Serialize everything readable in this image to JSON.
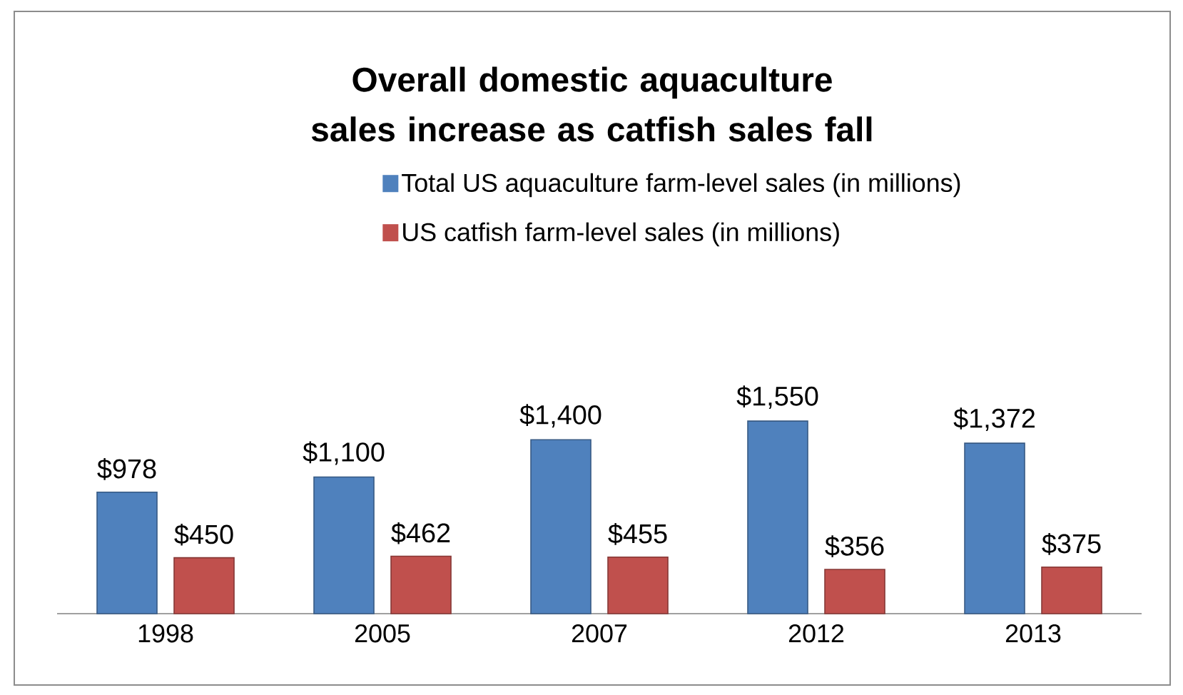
{
  "chart_data": {
    "type": "bar",
    "title": "Overall domestic aquaculture sales increase as catfish sales fall",
    "categories": [
      "1998",
      "2005",
      "2007",
      "2012",
      "2013"
    ],
    "series": [
      {
        "name": "Total US aquaculture farm-level sales (in millions)",
        "color": "#4f81bd",
        "values": [
          978,
          1100,
          1400,
          1550,
          1372
        ],
        "value_labels": [
          "$978",
          "$1,100",
          "$1,400",
          "$1,550",
          "$1,372"
        ]
      },
      {
        "name": "US catfish farm-level sales (in millions)",
        "color": "#c0504d",
        "values": [
          450,
          462,
          455,
          356,
          375
        ],
        "value_labels": [
          "$450",
          "$462",
          "$455",
          "$356",
          "$375"
        ]
      }
    ],
    "legend": "top"
  }
}
